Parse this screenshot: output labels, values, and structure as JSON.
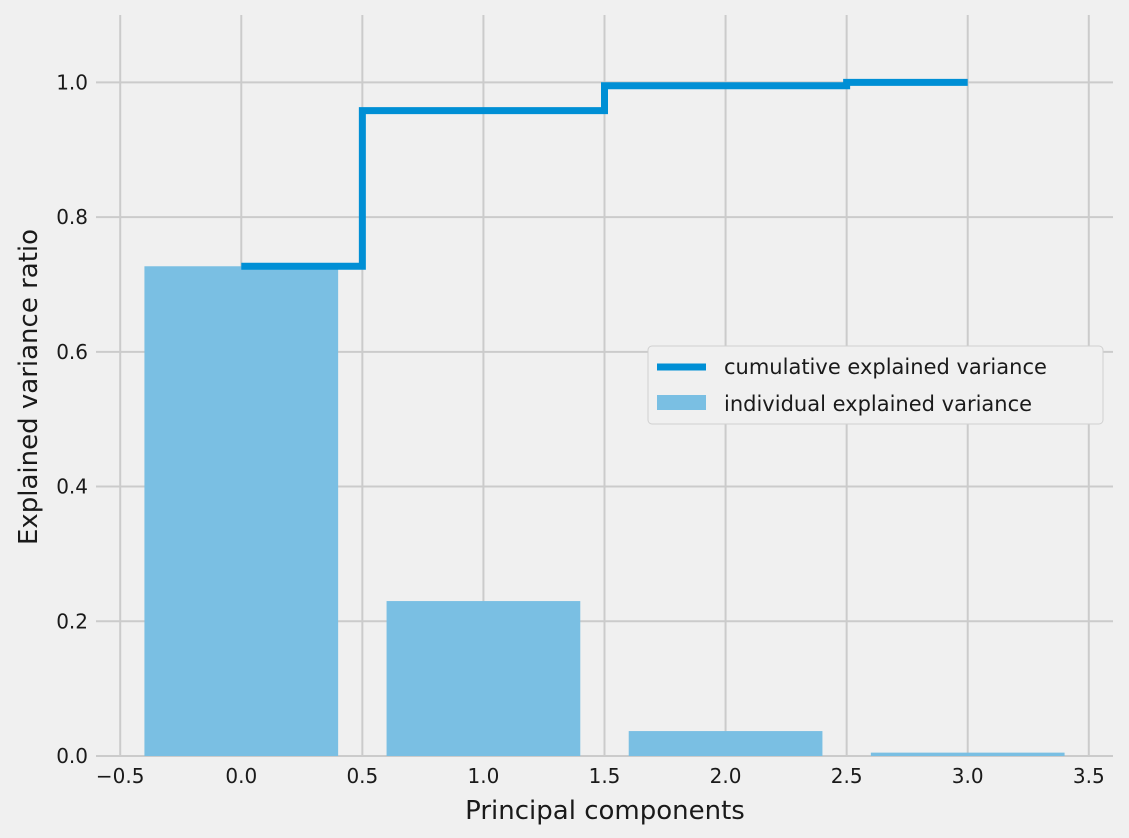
{
  "chart_data": {
    "type": "bar",
    "title": "",
    "xlabel": "Principal components",
    "ylabel": "Explained variance ratio",
    "xlim": [
      -0.6,
      3.6
    ],
    "ylim": [
      0.0,
      1.1
    ],
    "xticks": [
      -0.5,
      0.0,
      0.5,
      1.0,
      1.5,
      2.0,
      2.5,
      3.0,
      3.5
    ],
    "xtick_labels": [
      "−0.5",
      "0.0",
      "0.5",
      "1.0",
      "1.5",
      "2.0",
      "2.5",
      "3.0",
      "3.5"
    ],
    "yticks": [
      0.0,
      0.2,
      0.4,
      0.6,
      0.8,
      1.0
    ],
    "ytick_labels": [
      "0.0",
      "0.2",
      "0.4",
      "0.6",
      "0.8",
      "1.0"
    ],
    "grid": true,
    "legend_position": "center-right",
    "bars": {
      "name": "individual explained variance",
      "x": [
        0,
        1,
        2,
        3
      ],
      "values": [
        0.727,
        0.23,
        0.037,
        0.005
      ],
      "width": 0.8,
      "color": "#7abfe3"
    },
    "step": {
      "name": "cumulative explained variance",
      "x": [
        0,
        1,
        2,
        3
      ],
      "values": [
        0.727,
        0.958,
        0.995,
        1.0
      ],
      "where": "mid",
      "color": "#008fd5"
    },
    "colors": {
      "background": "#f0f0f0",
      "grid": "#cbcbcb"
    }
  }
}
